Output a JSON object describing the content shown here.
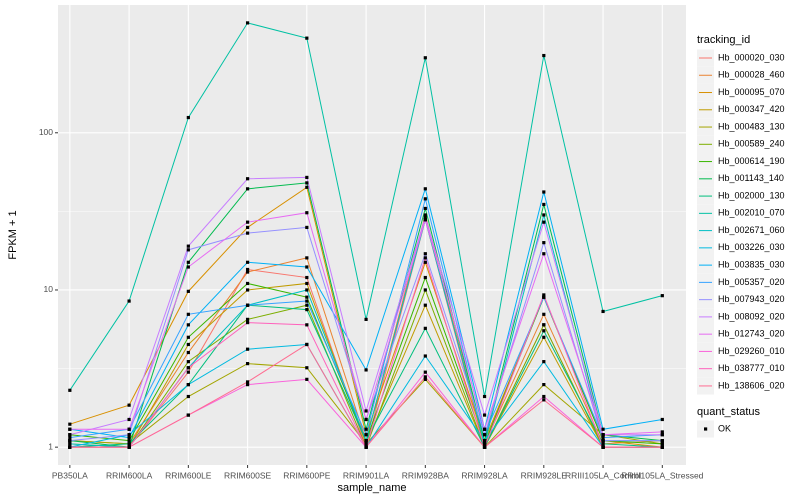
{
  "chart_data": {
    "type": "line",
    "x_label": "sample_name",
    "y_label": "FPKM + 1",
    "log_y": true,
    "grid": true,
    "legend_title": "tracking_id",
    "point_legend_title": "quant_status",
    "point_legend_labels": [
      "OK"
    ],
    "point_color": "#000000",
    "categories": [
      "PB350LA",
      "RRIM600LA",
      "RRIM600LE",
      "RRIM600SE",
      "RRIM600PE",
      "RRIM901LA",
      "RRIM928BA",
      "RRIM928LA",
      "RRIM928LE",
      "RRIII105LA_Control",
      "RRIII105LA_Stressed"
    ],
    "ylim": [
      0.77,
      650
    ],
    "yticks": [
      1,
      10,
      100
    ],
    "series": [
      {
        "name": "Hb_000020_030",
        "color": "#F8766D",
        "values": [
          1.0,
          1.0,
          3.0,
          13.5,
          12,
          1.0,
          28,
          1.0,
          6,
          1.0,
          1.0
        ]
      },
      {
        "name": "Hb_000028_460",
        "color": "#EA8331",
        "values": [
          1.1,
          1.05,
          4,
          13,
          16,
          1.1,
          30,
          1.05,
          7,
          1.05,
          1.1
        ]
      },
      {
        "name": "Hb_000095_070",
        "color": "#D89000",
        "values": [
          1.4,
          1.85,
          9.8,
          25,
          45,
          1.2,
          15,
          1.1,
          9,
          1.1,
          1.0
        ]
      },
      {
        "name": "Hb_000347_420",
        "color": "#C09B00",
        "values": [
          1.05,
          1.0,
          4.5,
          10,
          11,
          1.05,
          8,
          1.0,
          5,
          1.0,
          1.0
        ]
      },
      {
        "name": "Hb_000483_130",
        "color": "#A3A500",
        "values": [
          1.1,
          1.05,
          2.1,
          3.4,
          3.2,
          1.05,
          2.7,
          1.0,
          2.5,
          1.2,
          1.05
        ]
      },
      {
        "name": "Hb_000589_240",
        "color": "#7CAE00",
        "values": [
          1.0,
          1.0,
          3.5,
          6.5,
          8,
          1.0,
          10,
          1.0,
          6,
          1.0,
          1.0
        ]
      },
      {
        "name": "Hb_000614_190",
        "color": "#39B600",
        "values": [
          1.2,
          1.1,
          5,
          11,
          9,
          1.1,
          12,
          1.05,
          9,
          1.1,
          1.05
        ]
      },
      {
        "name": "Hb_001143_140",
        "color": "#00BB4E",
        "values": [
          1.1,
          1.0,
          15,
          44,
          48,
          1.3,
          33,
          1.1,
          35,
          1.2,
          1.1
        ]
      },
      {
        "name": "Hb_002000_130",
        "color": "#00BF7D",
        "values": [
          1.0,
          1.05,
          2.5,
          8,
          7.5,
          1.1,
          5.7,
          1.0,
          5.5,
          1.05,
          1.0
        ]
      },
      {
        "name": "Hb_002010_070",
        "color": "#00C1A3",
        "values": [
          2.3,
          8.5,
          125,
          500,
          400,
          6.5,
          300,
          2.1,
          310,
          7.3,
          9.2
        ]
      },
      {
        "name": "Hb_002671_060",
        "color": "#00BFC4",
        "values": [
          1.05,
          1.0,
          3.2,
          8,
          10,
          1.1,
          28,
          1.05,
          30,
          1.1,
          1.1
        ]
      },
      {
        "name": "Hb_003226_030",
        "color": "#00BAE0",
        "values": [
          1.0,
          1.2,
          2.5,
          4.2,
          4.5,
          1.0,
          3.8,
          1.1,
          3.5,
          1.0,
          1.0
        ]
      },
      {
        "name": "Hb_003835_030",
        "color": "#00B0F6",
        "values": [
          1.3,
          1.15,
          6,
          15,
          14,
          3.1,
          44,
          1.3,
          42,
          1.3,
          1.5
        ]
      },
      {
        "name": "Hb_005357_020",
        "color": "#35A2FF",
        "values": [
          1.15,
          1.3,
          7,
          8,
          8.5,
          1.2,
          38,
          1.2,
          9,
          1.15,
          1.2
        ]
      },
      {
        "name": "Hb_007943_020",
        "color": "#9590FF",
        "values": [
          1.1,
          1.2,
          18,
          23,
          25,
          1.5,
          17,
          1.2,
          20,
          1.1,
          1.1
        ]
      },
      {
        "name": "Hb_008092_020",
        "color": "#C77CFF",
        "values": [
          1.2,
          1.5,
          19,
          51,
          52,
          1.7,
          29,
          1.6,
          27,
          1.2,
          1.2
        ]
      },
      {
        "name": "Hb_012743_020",
        "color": "#E76BF3",
        "values": [
          1.3,
          1.3,
          14,
          27,
          31,
          1.5,
          28,
          1.3,
          17,
          1.2,
          1.25
        ]
      },
      {
        "name": "Hb_029260_010",
        "color": "#FA62DB",
        "values": [
          1.0,
          1.0,
          1.6,
          2.5,
          2.7,
          1.0,
          3.0,
          1.0,
          2.1,
          1.0,
          1.0
        ]
      },
      {
        "name": "Hb_038777_010",
        "color": "#FF62BC",
        "values": [
          1.0,
          1.0,
          3.2,
          6.2,
          6,
          1.0,
          16,
          1.0,
          9.3,
          1.0,
          1.0
        ]
      },
      {
        "name": "Hb_138606_020",
        "color": "#FF6C91",
        "values": [
          1.0,
          1.0,
          1.6,
          2.6,
          4.5,
          1.0,
          2.8,
          1.0,
          2.0,
          1.0,
          1.0
        ]
      }
    ]
  }
}
